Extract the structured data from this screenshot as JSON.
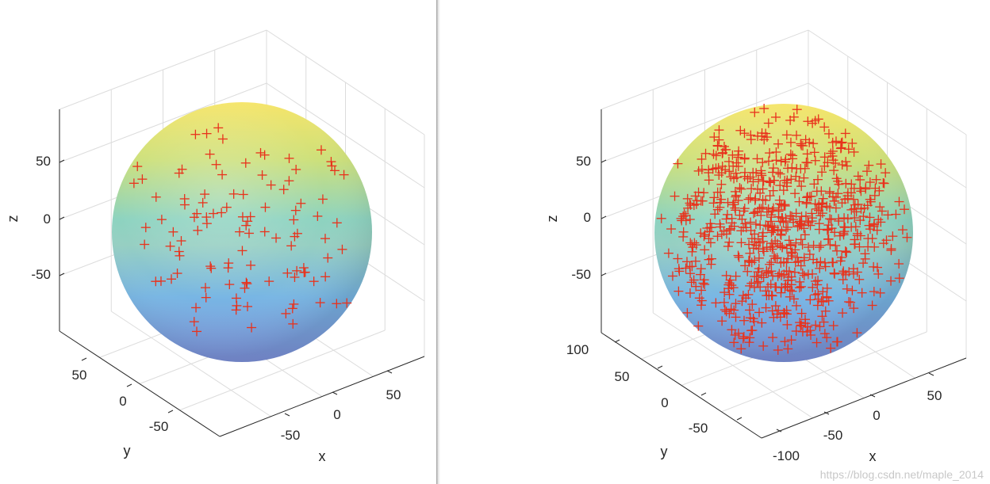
{
  "chart_data": [
    {
      "type": "scatter3d",
      "title": "",
      "surface": "sphere",
      "surface_radius": 100,
      "colormap": "parula",
      "marker": "+",
      "marker_color": "#e8321c",
      "grid": true,
      "xlabel": "x",
      "ylabel": "y",
      "zlabel": "z",
      "x_ticks": [
        "-50",
        "0",
        "50"
      ],
      "y_ticks": [
        "50",
        "0",
        "-50"
      ],
      "z_ticks": [
        "50",
        "0",
        "-50"
      ],
      "n_points": 110,
      "seed": 7
    },
    {
      "type": "scatter3d",
      "title": "",
      "surface": "sphere",
      "surface_radius": 100,
      "colormap": "parula",
      "marker": "+",
      "marker_color": "#e8321c",
      "grid": true,
      "xlabel": "x",
      "ylabel": "y",
      "zlabel": "z",
      "x_ticks": [
        "-100",
        "-50",
        "0",
        "50"
      ],
      "y_ticks": [
        "100",
        "50",
        "0",
        "-50"
      ],
      "z_ticks": [
        "50",
        "0",
        "-50"
      ],
      "n_points": 750,
      "seed": 13
    }
  ],
  "watermark": "https://blog.csdn.net/maple_2014"
}
